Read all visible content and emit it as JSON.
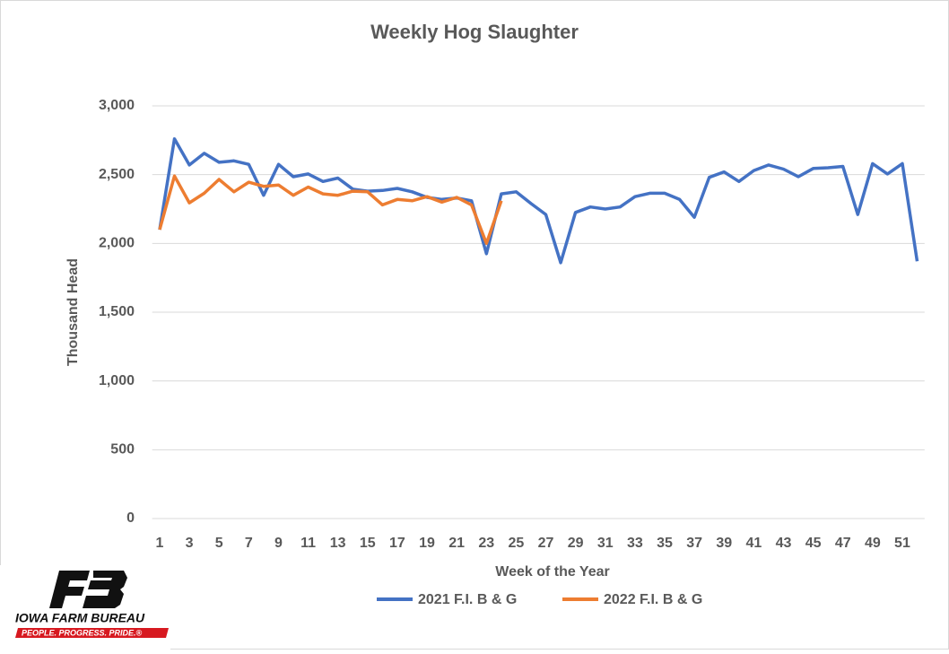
{
  "chart_data": {
    "type": "line",
    "title": "Weekly Hog Slaughter",
    "x_label": "Week of the Year",
    "y_label": "Thousand Head",
    "categories": [
      1,
      null,
      3,
      null,
      5,
      null,
      7,
      null,
      9,
      null,
      11,
      null,
      13,
      null,
      15,
      null,
      17,
      null,
      19,
      null,
      21,
      null,
      23,
      null,
      25,
      null,
      27,
      null,
      29,
      null,
      31,
      null,
      33,
      null,
      35,
      null,
      37,
      null,
      39,
      null,
      41,
      null,
      43,
      null,
      45,
      null,
      47,
      null,
      49,
      null,
      51,
      null
    ],
    "series": [
      {
        "name": "2021 F.I. B & G",
        "color": "#4472c4",
        "values": [
          2100,
          2760,
          2570,
          2655,
          2590,
          2600,
          2575,
          2350,
          2575,
          2485,
          2505,
          2450,
          2475,
          2395,
          2380,
          2385,
          2400,
          2375,
          2335,
          2320,
          2330,
          2310,
          1925,
          2360,
          2375,
          2290,
          2210,
          1860,
          2225,
          2265,
          2250,
          2265,
          2340,
          2365,
          2365,
          2320,
          2190,
          2480,
          2520,
          2450,
          2530,
          2570,
          2540,
          2485,
          2545,
          2550,
          2560,
          2210,
          2580,
          2505,
          2580,
          1870
        ]
      },
      {
        "name": "2022 F.I. B & G",
        "color": "#ed7d31",
        "values": [
          2100,
          2490,
          2295,
          2365,
          2465,
          2375,
          2445,
          2415,
          2425,
          2350,
          2410,
          2360,
          2350,
          2380,
          2375,
          2280,
          2320,
          2310,
          2340,
          2300,
          2335,
          2280,
          2000,
          2310,
          null,
          null,
          null,
          null,
          null,
          null,
          null,
          null,
          null,
          null,
          null,
          null,
          null,
          null,
          null,
          null,
          null,
          null,
          null,
          null,
          null,
          null,
          null,
          null,
          null,
          null,
          null,
          null
        ]
      }
    ],
    "ylim": [
      0,
      3000
    ],
    "yticks": [
      0,
      500,
      {
        "value": 1000,
        "label": "1,000"
      },
      {
        "value": 1500,
        "label": "1,500"
      },
      {
        "value": 2000,
        "label": "2,000"
      },
      {
        "value": 2500,
        "label": "2,500"
      },
      {
        "value": 3000,
        "label": "3,000"
      }
    ],
    "grid": true,
    "legend": "bottom",
    "logo": {
      "name": "IOWA FARM BUREAU",
      "tagline": "PEOPLE. PROGRESS. PRIDE.®"
    }
  }
}
